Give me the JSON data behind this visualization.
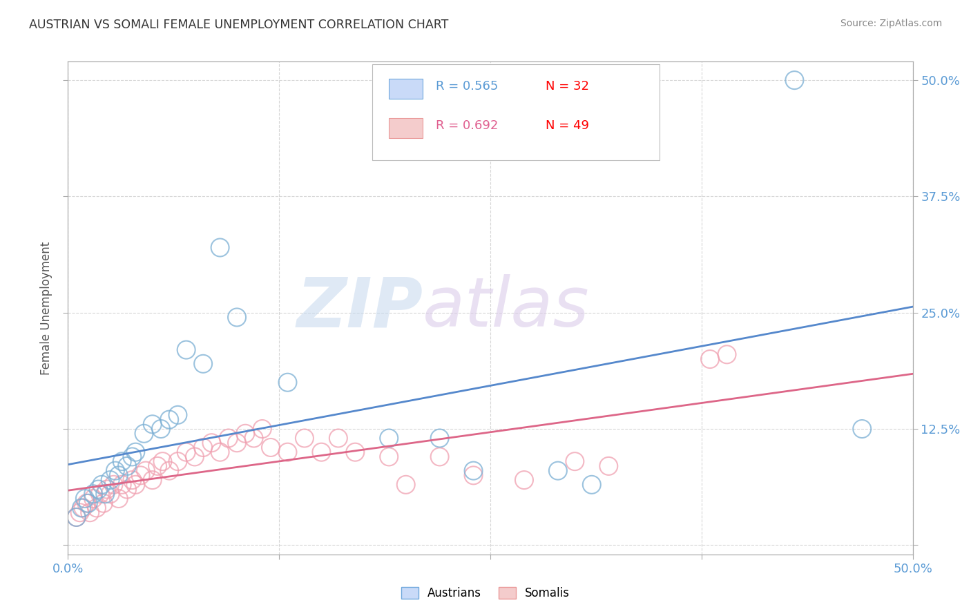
{
  "title": "AUSTRIAN VS SOMALI FEMALE UNEMPLOYMENT CORRELATION CHART",
  "source": "Source: ZipAtlas.com",
  "ylabel": "Female Unemployment",
  "xlabel": "",
  "xlim": [
    0.0,
    0.5
  ],
  "ylim": [
    -0.01,
    0.52
  ],
  "xticks": [
    0.0,
    0.125,
    0.25,
    0.375,
    0.5
  ],
  "yticks": [
    0.0,
    0.125,
    0.25,
    0.375,
    0.5
  ],
  "xticklabels": [
    "0.0%",
    "",
    "",
    "",
    "50.0%"
  ],
  "yticklabels_right": [
    "",
    "12.5%",
    "25.0%",
    "37.5%",
    "50.0%"
  ],
  "background": "#ffffff",
  "grid_color": "#cccccc",
  "blue_color": "#7bafd4",
  "pink_color": "#f0a0b0",
  "blue_line_color": "#5588cc",
  "pink_line_color": "#dd6688",
  "legend_blue_R": "R = 0.565",
  "legend_blue_N": "N = 32",
  "legend_pink_R": "R = 0.692",
  "legend_pink_N": "N = 49",
  "watermark_zip": "ZIP",
  "watermark_atlas": "atlas",
  "austrians_x": [
    0.005,
    0.008,
    0.01,
    0.012,
    0.015,
    0.018,
    0.02,
    0.022,
    0.025,
    0.028,
    0.03,
    0.032,
    0.035,
    0.038,
    0.04,
    0.045,
    0.05,
    0.055,
    0.06,
    0.065,
    0.07,
    0.08,
    0.09,
    0.1,
    0.13,
    0.19,
    0.22,
    0.24,
    0.29,
    0.31,
    0.43,
    0.47
  ],
  "austrians_y": [
    0.03,
    0.04,
    0.05,
    0.045,
    0.055,
    0.06,
    0.065,
    0.055,
    0.07,
    0.08,
    0.075,
    0.09,
    0.085,
    0.095,
    0.1,
    0.12,
    0.13,
    0.125,
    0.135,
    0.14,
    0.21,
    0.195,
    0.32,
    0.245,
    0.175,
    0.115,
    0.115,
    0.08,
    0.08,
    0.065,
    0.5,
    0.125
  ],
  "somalis_x": [
    0.005,
    0.007,
    0.009,
    0.011,
    0.013,
    0.015,
    0.017,
    0.019,
    0.021,
    0.023,
    0.025,
    0.027,
    0.03,
    0.032,
    0.035,
    0.038,
    0.04,
    0.043,
    0.046,
    0.05,
    0.053,
    0.056,
    0.06,
    0.065,
    0.07,
    0.075,
    0.08,
    0.085,
    0.09,
    0.095,
    0.1,
    0.105,
    0.11,
    0.115,
    0.12,
    0.13,
    0.14,
    0.15,
    0.16,
    0.17,
    0.19,
    0.2,
    0.22,
    0.24,
    0.27,
    0.3,
    0.32,
    0.38,
    0.39
  ],
  "somalis_y": [
    0.03,
    0.035,
    0.04,
    0.045,
    0.035,
    0.05,
    0.04,
    0.055,
    0.045,
    0.06,
    0.055,
    0.065,
    0.05,
    0.065,
    0.06,
    0.07,
    0.065,
    0.075,
    0.08,
    0.07,
    0.085,
    0.09,
    0.08,
    0.09,
    0.1,
    0.095,
    0.105,
    0.11,
    0.1,
    0.115,
    0.11,
    0.12,
    0.115,
    0.125,
    0.105,
    0.1,
    0.115,
    0.1,
    0.115,
    0.1,
    0.095,
    0.065,
    0.095,
    0.075,
    0.07,
    0.09,
    0.085,
    0.2,
    0.205
  ]
}
